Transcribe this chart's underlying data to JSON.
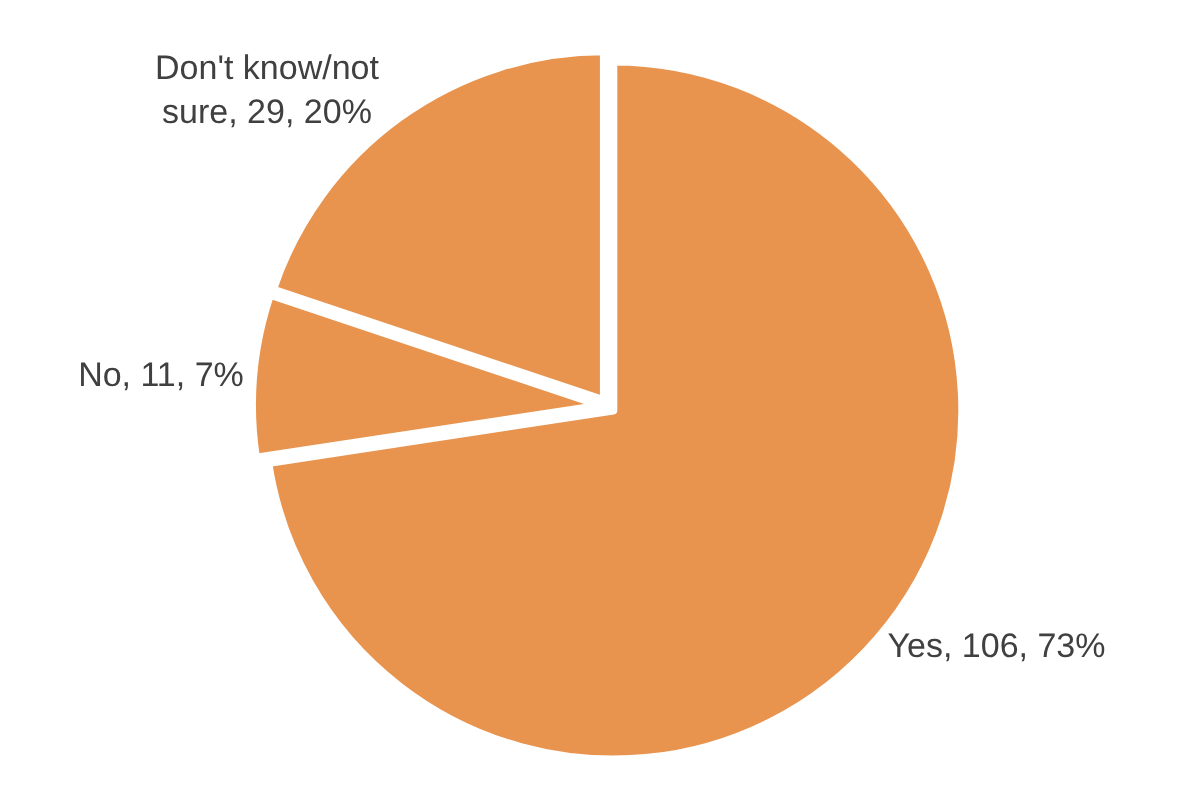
{
  "chart_data": {
    "type": "pie",
    "categories": [
      "Yes",
      "No",
      "Don't know/not sure"
    ],
    "values": [
      106,
      11,
      29
    ],
    "value_labels": [
      "106, 73%",
      "11, 7%",
      "29, 20%"
    ],
    "colors": [
      "#e8944f",
      "#e8944f",
      "#e8944f"
    ],
    "legend": false
  }
}
